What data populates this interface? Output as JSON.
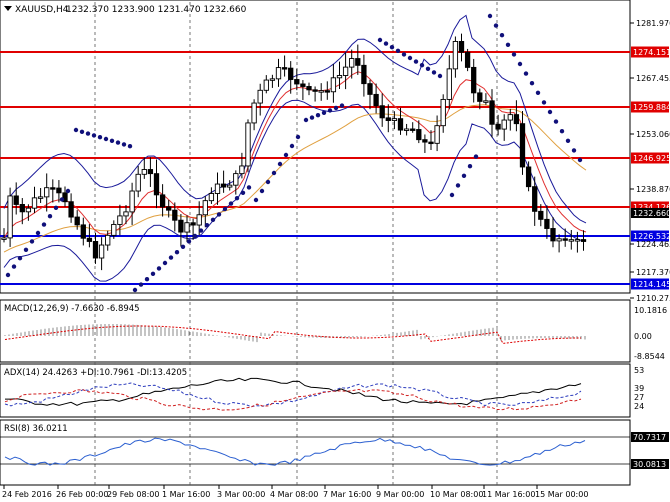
{
  "header": {
    "symbol": "XAUUSD,H4",
    "ohlc": "1232.370  1233.900  1231.470  1232.660"
  },
  "price_axis": {
    "ticks": [
      "1281.970",
      "1267.455",
      "1253.060",
      "1238.870",
      "1224.465",
      "1217.370",
      "1210.275"
    ]
  },
  "horizontal_levels": [
    {
      "label": "1274.151",
      "color": "#e00000"
    },
    {
      "label": "1259.884",
      "color": "#e00000"
    },
    {
      "label": "1246.925",
      "color": "#e00000"
    },
    {
      "label": "1234.126",
      "color": "#e00000"
    },
    {
      "label": "1226.532",
      "color": "#0000e0"
    },
    {
      "label": "1214.145",
      "color": "#0000e0"
    }
  ],
  "current_price_label": "1232.660",
  "macd": {
    "label": "MACD(12,26,9) -7.6630 -6.8945",
    "ticks": [
      "10.1816",
      "0.00",
      "-8.8544"
    ]
  },
  "adx": {
    "label": "ADX(14) 24.4263 +DI:10.7961 -DI:13.4205",
    "ticks": [
      "53",
      "39",
      "27",
      "24"
    ]
  },
  "rsi": {
    "label": "RSI(8) 36.0211",
    "ticks": [
      "70.7317",
      "30.0813"
    ]
  },
  "time_axis": [
    "24 Feb 2016",
    "26 Feb 00:00",
    "29 Feb 08:00",
    "1 Mar 16:00",
    "3 Mar 00:00",
    "4 Mar 08:00",
    "7 Mar 16:00",
    "9 Mar 00:00",
    "10 Mar 08:00",
    "11 Mar 16:00",
    "15 Mar 00:00"
  ],
  "colors": {
    "bullish": "#ffffff",
    "bearish": "#000000",
    "bollinger": "#1a1a9a",
    "ema_fast": "#e03030",
    "ema_slow": "#e0a040",
    "sar": "#10107a",
    "support_blue": "#0000e0",
    "resistance_red": "#e00000"
  }
}
